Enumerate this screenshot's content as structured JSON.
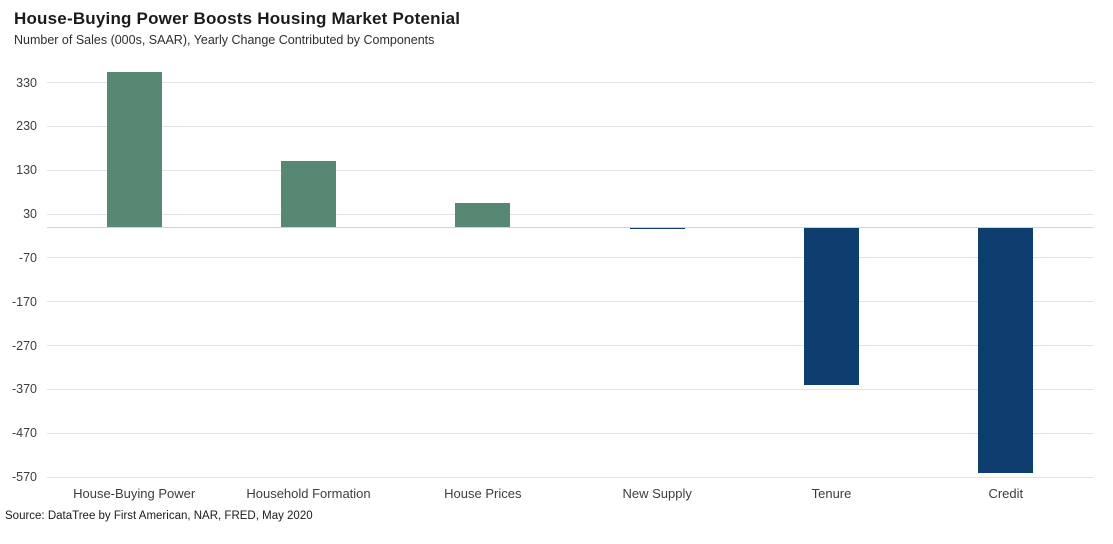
{
  "title": "House-Buying Power Boosts Housing Market Potenial",
  "subtitle": "Number of Sales (000s, SAAR), Yearly Change Contributed by Components",
  "source": "Source: DataTree by First American, NAR, FRED, May 2020",
  "chart_data": {
    "type": "bar",
    "title": "House-Buying Power Boosts Housing Market Potenial",
    "subtitle": "Number of Sales (000s, SAAR), Yearly Change Contributed by Components",
    "categories": [
      "House-Buying Power",
      "Household Formation",
      "House Prices",
      "New Supply",
      "Tenure",
      "Credit"
    ],
    "values": [
      354,
      152,
      56,
      -4,
      -360,
      -560
    ],
    "yticks": [
      330,
      230,
      130,
      30,
      -70,
      -170,
      -270,
      -370,
      -470,
      -570
    ],
    "ylim": [
      -570,
      370
    ],
    "xlabel": "",
    "ylabel": "Number of Sales (000s, SAAR)",
    "grid": "horizontal",
    "legend": "none",
    "annotation": "Source: DataTree by First American, NAR, FRED, May 2020",
    "colors": {
      "positive": "#568874",
      "negative": "#0E3E6F",
      "gridline": "#E2E2E2",
      "zero_line": "#D2D2D2"
    }
  }
}
